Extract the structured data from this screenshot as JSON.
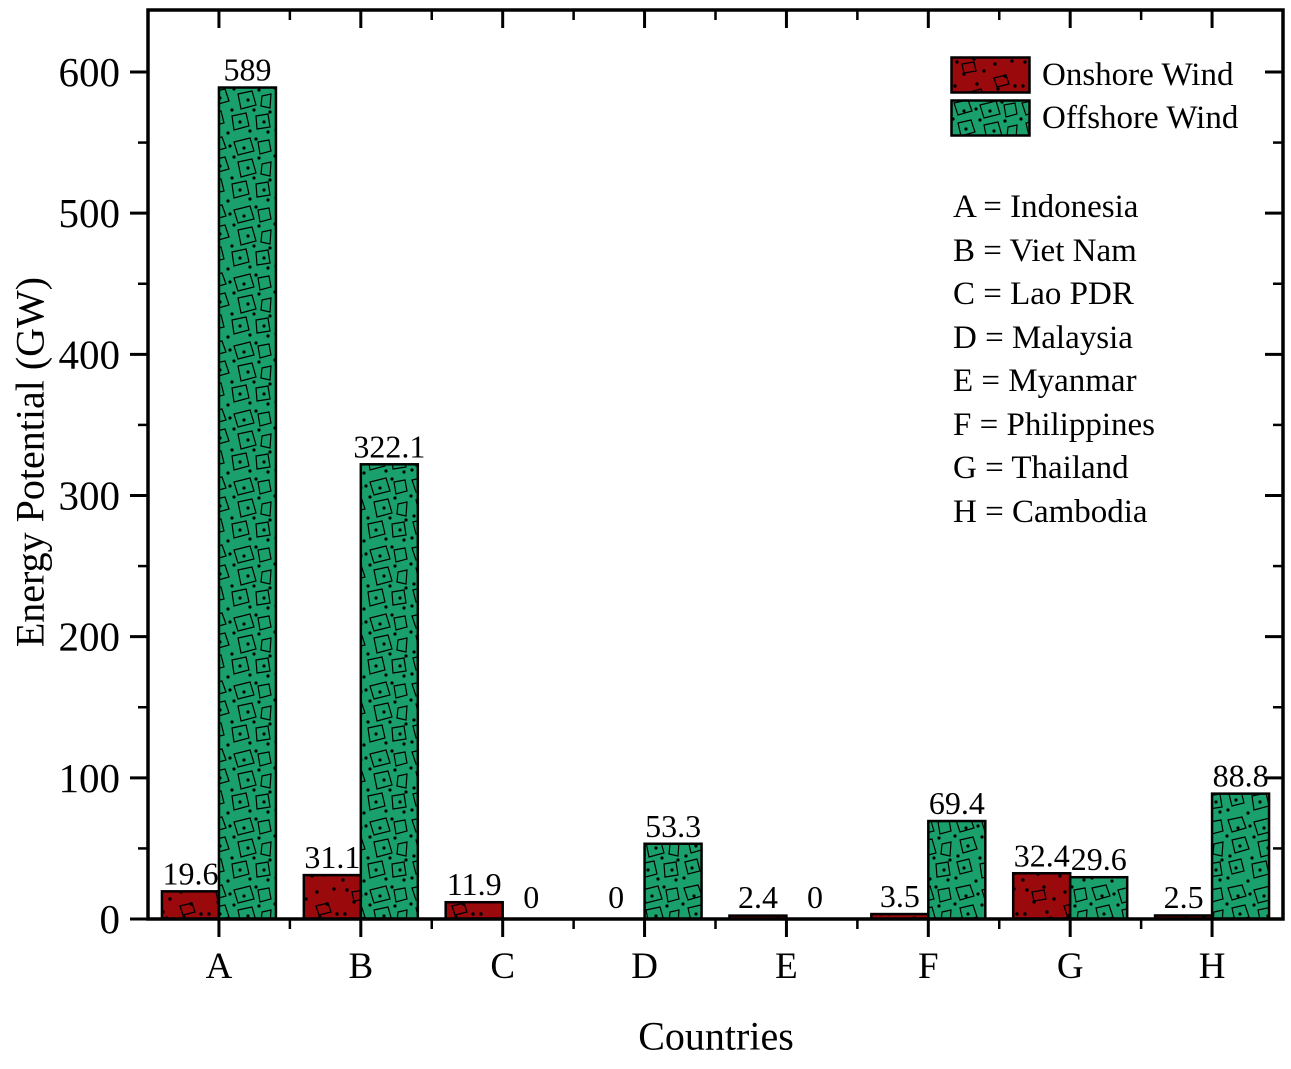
{
  "chart_data": {
    "type": "bar",
    "title": "",
    "xlabel": "Countries",
    "ylabel": "Energy Potential (GW)",
    "ylim": [
      0,
      643
    ],
    "yticks_major": [
      0,
      100,
      200,
      300,
      400,
      500,
      600
    ],
    "ytick_minor_step": 50,
    "grid": false,
    "legend_position": "top-right-inside",
    "categories": [
      "A",
      "B",
      "C",
      "D",
      "E",
      "F",
      "G",
      "H"
    ],
    "series": [
      {
        "name": "Onshore Wind",
        "color": "#9a090c",
        "pattern": "dots-and-stones",
        "values": [
          19.6,
          31.1,
          11.9,
          0,
          2.4,
          3.5,
          32.4,
          2.5
        ]
      },
      {
        "name": "Offshore Wind",
        "color": "#1aa06b",
        "pattern": "stones-and-dots",
        "values": [
          589,
          322.1,
          0,
          53.3,
          0,
          69.4,
          29.6,
          88.8
        ]
      }
    ],
    "bar_outline_color": "#000000",
    "country_key": [
      "A = Indonesia",
      "B = Viet Nam",
      "C = Lao PDR",
      "D = Malaysia",
      "E = Myanmar",
      "F = Philippines",
      "G = Thailand",
      "H = Cambodia"
    ]
  }
}
